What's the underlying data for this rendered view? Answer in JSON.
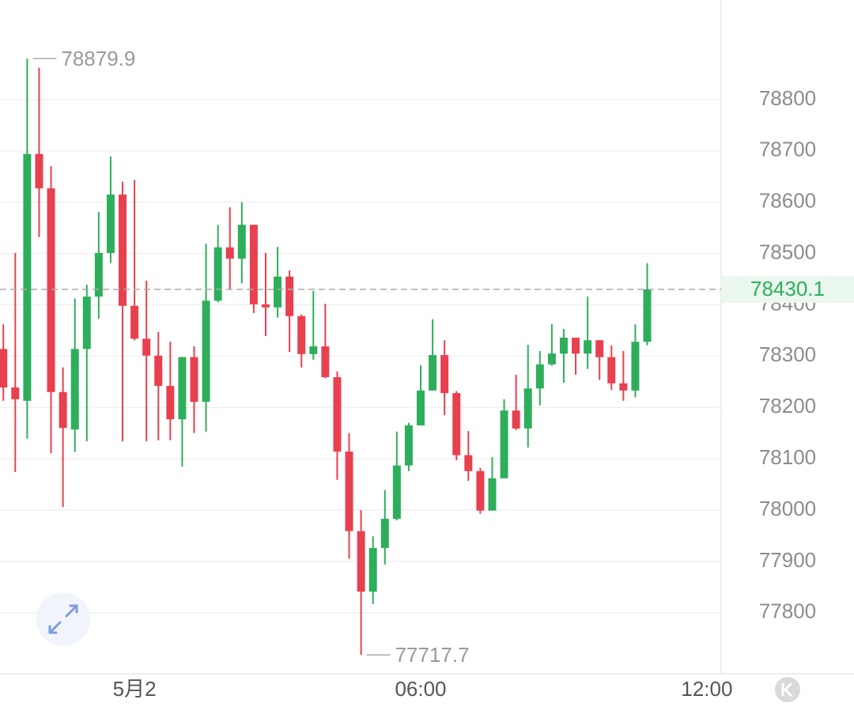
{
  "chart_data": {
    "type": "candlestick",
    "x": [
      -2.75,
      -2.5,
      -2.25,
      -2,
      -1.75,
      -1.5,
      -1.25,
      -1,
      -0.75,
      -0.5,
      -0.25,
      0,
      0.25,
      0.5,
      0.75,
      1,
      1.25,
      1.5,
      1.75,
      2,
      2.25,
      2.5,
      2.75,
      3,
      3.25,
      3.5,
      3.75,
      4,
      4.25,
      4.5,
      4.75,
      5,
      5.25,
      5.5,
      5.75,
      6,
      6.25,
      6.5,
      6.75,
      7,
      7.25,
      7.5,
      7.75,
      8,
      8.25,
      8.5,
      8.75,
      9,
      9.25,
      9.5,
      9.75,
      10,
      10.25,
      10.5,
      10.75
    ],
    "open": [
      78314,
      78239,
      78213,
      78694,
      78627,
      78230,
      78157,
      78314,
      78416,
      78501,
      78615,
      78398,
      78334,
      78301,
      78242,
      78177,
      78298,
      78211,
      78408,
      78512,
      78490,
      78556,
      78401,
      78395,
      78455,
      78378,
      78304,
      78319,
      78259,
      78114,
      77959,
      77841,
      77926,
      77983,
      78087,
      78165,
      78233,
      78302,
      78228,
      78107,
      78076,
      77999,
      78062,
      78194,
      78159,
      78237,
      78284,
      78305,
      78336,
      78305,
      78331,
      78298,
      78247,
      78233,
      78328
    ],
    "high": [
      78362,
      78501,
      78879.9,
      78862,
      78670,
      78278,
      78412,
      78439,
      78581,
      78689,
      78640,
      78643,
      78447,
      78347,
      78328,
      78298,
      78319,
      78519,
      78556,
      78590,
      78600,
      78556,
      78501,
      78513,
      78467,
      78381,
      78427,
      78402,
      78270,
      78150,
      78000,
      77949,
      78039,
      78153,
      78170,
      78282,
      78372,
      78331,
      78232,
      78154,
      78082,
      78103,
      78216,
      78264,
      78322,
      78310,
      78362,
      78353,
      78336,
      78416,
      78331,
      78321,
      78310,
      78362,
      78481
    ],
    "low": [
      78213,
      78074,
      78139,
      78532,
      78111,
      78006,
      78113,
      78134,
      78373,
      78482,
      78134,
      78331,
      78134,
      78136,
      78136,
      78085,
      78150,
      78153,
      78405,
      78430,
      78442,
      78384,
      78339,
      78375,
      78308,
      78278,
      78293,
      78257,
      78059,
      77905,
      77717.7,
      77817,
      77894,
      77980,
      78076,
      78165,
      78233,
      78185,
      78097,
      78057,
      77993,
      77999,
      78062,
      78156,
      78122,
      78204,
      78281,
      78248,
      78264,
      78275,
      78254,
      78234,
      78213,
      78220,
      78321
    ],
    "close": [
      78239,
      78216,
      78694,
      78627,
      78230,
      78160,
      78314,
      78416,
      78501,
      78615,
      78398,
      78334,
      78301,
      78242,
      78177,
      78298,
      78211,
      78408,
      78512,
      78490,
      78556,
      78401,
      78395,
      78455,
      78378,
      78304,
      78319,
      78259,
      78114,
      77959,
      77841,
      77926,
      77983,
      78087,
      78165,
      78233,
      78302,
      78228,
      78107,
      78076,
      77999,
      78062,
      78194,
      78159,
      78237,
      78284,
      78305,
      78336,
      78305,
      78331,
      78298,
      78247,
      78233,
      78328,
      78430.1
    ],
    "up_color": "#2eae5b",
    "down_color": "#e8404f",
    "xlim": [
      -2.82,
      12.3
    ],
    "xticks": [
      {
        "value": 0,
        "label": "5月2"
      },
      {
        "value": 6,
        "label": "06:00"
      },
      {
        "value": 12,
        "label": "12:00"
      }
    ],
    "ylim": [
      77681,
      78994
    ],
    "yticks": [
      77800,
      77900,
      78000,
      78100,
      78200,
      78300,
      78400,
      78500,
      78600,
      78700,
      78800
    ],
    "grid": true,
    "annotations": [
      {
        "x": -2.25,
        "value": 78879.9
      },
      {
        "x": 4.75,
        "value": 77717.7
      }
    ],
    "last_price": 78430.1
  }
}
